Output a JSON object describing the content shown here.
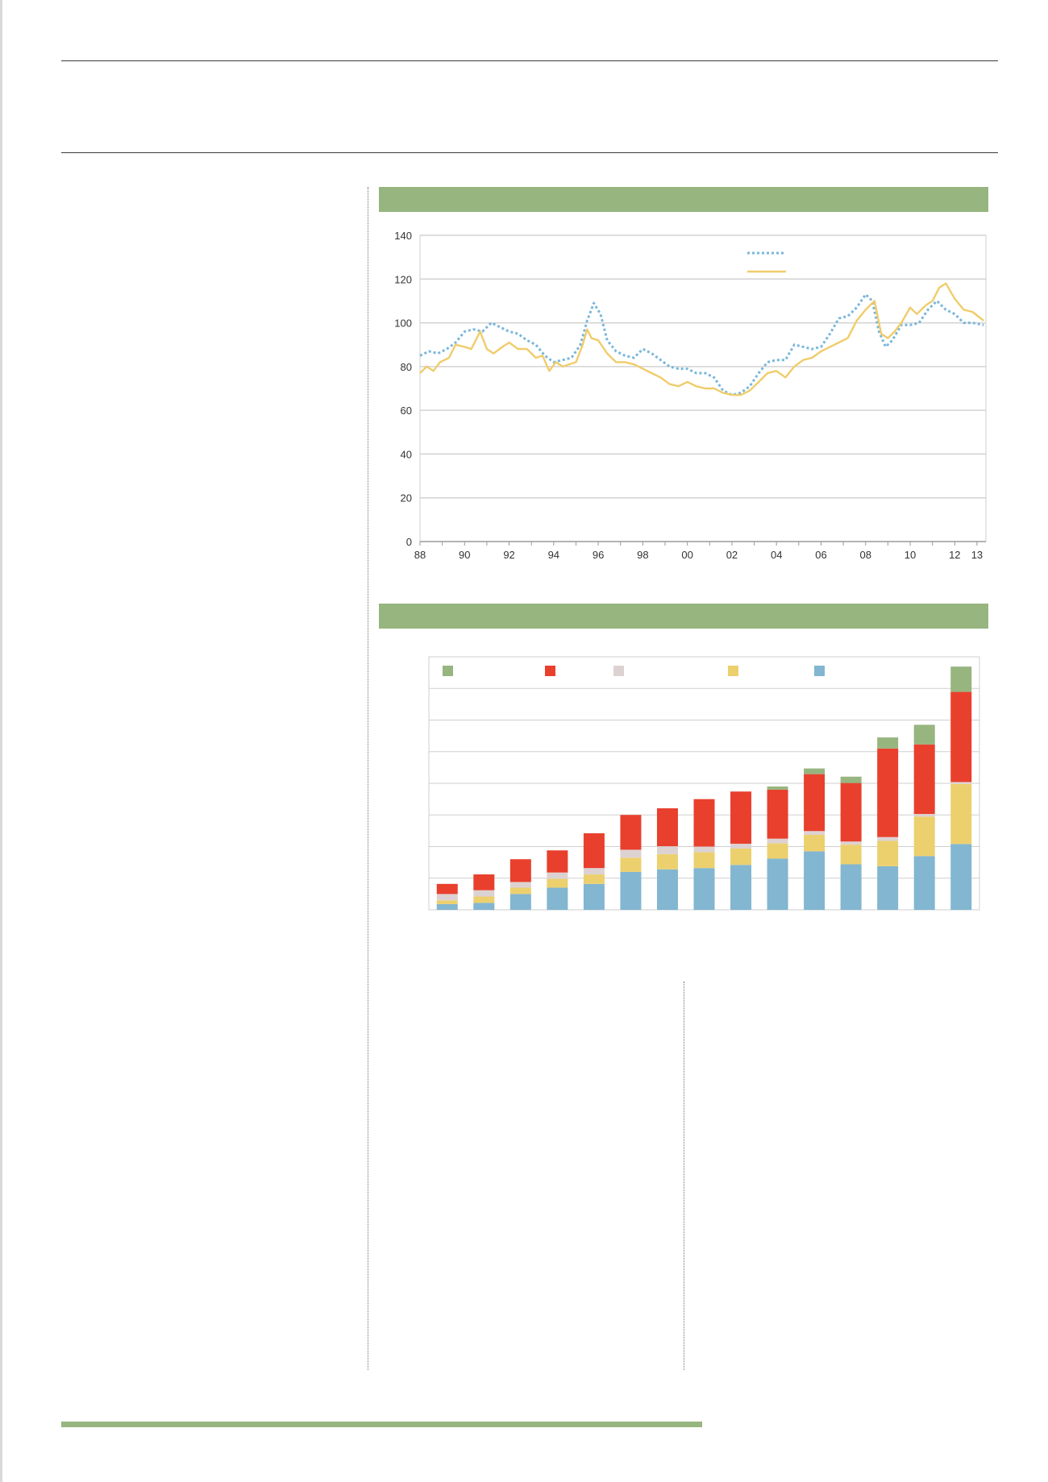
{
  "colors": {
    "band": "#97b57f",
    "blue_dotted": "#7ab7dc",
    "yellow_line": "#f0cc6a",
    "legend_green": "#97b57f",
    "legend_red": "#e8402d",
    "legend_gray": "#ddd2d2",
    "legend_yellow": "#ecd06e",
    "legend_blue": "#82b6d1"
  },
  "chart_data": [
    {
      "type": "line",
      "title": "",
      "xlabel": "",
      "ylabel": "",
      "ylim": [
        0,
        140
      ],
      "xlim": [
        1988,
        2013.4
      ],
      "grid": true,
      "legend": "top-right",
      "yticks": [
        "0",
        "20",
        "40",
        "60",
        "80",
        "100",
        "120",
        "140"
      ],
      "xticks": [
        {
          "x": 1988,
          "label": "88"
        },
        {
          "x": 1990,
          "label": "90"
        },
        {
          "x": 1992,
          "label": "92"
        },
        {
          "x": 1994,
          "label": "94"
        },
        {
          "x": 1996,
          "label": "96"
        },
        {
          "x": 1998,
          "label": "98"
        },
        {
          "x": 2000,
          "label": "00"
        },
        {
          "x": 2002,
          "label": "02"
        },
        {
          "x": 2004,
          "label": "04"
        },
        {
          "x": 2006,
          "label": "06"
        },
        {
          "x": 2008,
          "label": "08"
        },
        {
          "x": 2010,
          "label": "10"
        },
        {
          "x": 2012,
          "label": "12"
        },
        {
          "x": 2013,
          "label": "13"
        }
      ],
      "series": [
        {
          "style": "dotted",
          "color": "#7ab7dc",
          "points": [
            [
              1988,
              85
            ],
            [
              1988.4,
              87
            ],
            [
              1988.8,
              86
            ],
            [
              1989.2,
              88
            ],
            [
              1989.6,
              91
            ],
            [
              1990,
              96
            ],
            [
              1990.4,
              97
            ],
            [
              1990.8,
              96
            ],
            [
              1991.2,
              100
            ],
            [
              1991.6,
              98
            ],
            [
              1992,
              96
            ],
            [
              1992.4,
              95
            ],
            [
              1992.8,
              92
            ],
            [
              1993.2,
              90
            ],
            [
              1993.6,
              85
            ],
            [
              1994,
              82
            ],
            [
              1994.4,
              83
            ],
            [
              1994.8,
              84
            ],
            [
              1995.2,
              90
            ],
            [
              1995.5,
              101
            ],
            [
              1995.8,
              109
            ],
            [
              1996.1,
              104
            ],
            [
              1996.4,
              92
            ],
            [
              1996.8,
              87
            ],
            [
              1997.2,
              85
            ],
            [
              1997.6,
              84
            ],
            [
              1998,
              88
            ],
            [
              1998.4,
              86
            ],
            [
              1998.8,
              83
            ],
            [
              1999.2,
              80
            ],
            [
              1999.6,
              79
            ],
            [
              2000,
              79
            ],
            [
              2000.4,
              77
            ],
            [
              2000.8,
              77
            ],
            [
              2001.2,
              75
            ],
            [
              2001.6,
              69
            ],
            [
              2002,
              67
            ],
            [
              2002.4,
              68
            ],
            [
              2002.8,
              71
            ],
            [
              2003.2,
              77
            ],
            [
              2003.6,
              82
            ],
            [
              2004,
              83
            ],
            [
              2004.4,
              83
            ],
            [
              2004.8,
              90
            ],
            [
              2005.2,
              89
            ],
            [
              2005.6,
              88
            ],
            [
              2006,
              89
            ],
            [
              2006.4,
              95
            ],
            [
              2006.8,
              102
            ],
            [
              2007.2,
              103
            ],
            [
              2007.6,
              107
            ],
            [
              2008,
              113
            ],
            [
              2008.3,
              110
            ],
            [
              2008.6,
              96
            ],
            [
              2008.9,
              89
            ],
            [
              2009.2,
              92
            ],
            [
              2009.6,
              99
            ],
            [
              2010,
              99
            ],
            [
              2010.4,
              100
            ],
            [
              2010.8,
              106
            ],
            [
              2011.2,
              110
            ],
            [
              2011.6,
              106
            ],
            [
              2012,
              104
            ],
            [
              2012.4,
              100
            ],
            [
              2012.8,
              100
            ],
            [
              2013.3,
              99
            ]
          ]
        },
        {
          "style": "solid",
          "color": "#f0cc6a",
          "points": [
            [
              1988,
              77
            ],
            [
              1988.3,
              80
            ],
            [
              1988.6,
              78
            ],
            [
              1988.9,
              82
            ],
            [
              1989.3,
              84
            ],
            [
              1989.6,
              90
            ],
            [
              1990,
              89
            ],
            [
              1990.3,
              88
            ],
            [
              1990.7,
              96
            ],
            [
              1991,
              88
            ],
            [
              1991.3,
              86
            ],
            [
              1991.7,
              89
            ],
            [
              1992,
              91
            ],
            [
              1992.4,
              88
            ],
            [
              1992.8,
              88
            ],
            [
              1993.2,
              84
            ],
            [
              1993.5,
              85
            ],
            [
              1993.8,
              78
            ],
            [
              1994.1,
              82
            ],
            [
              1994.4,
              80
            ],
            [
              1994.7,
              81
            ],
            [
              1995,
              82
            ],
            [
              1995.3,
              90
            ],
            [
              1995.5,
              97
            ],
            [
              1995.7,
              93
            ],
            [
              1996,
              92
            ],
            [
              1996.4,
              86
            ],
            [
              1996.8,
              82
            ],
            [
              1997.2,
              82
            ],
            [
              1997.6,
              81
            ],
            [
              1998,
              79
            ],
            [
              1998.4,
              77
            ],
            [
              1998.8,
              75
            ],
            [
              1999.2,
              72
            ],
            [
              1999.6,
              71
            ],
            [
              2000,
              73
            ],
            [
              2000.4,
              71
            ],
            [
              2000.8,
              70
            ],
            [
              2001.2,
              70
            ],
            [
              2001.6,
              68
            ],
            [
              2002,
              67
            ],
            [
              2002.4,
              67
            ],
            [
              2002.8,
              69
            ],
            [
              2003.2,
              73
            ],
            [
              2003.6,
              77
            ],
            [
              2004,
              78
            ],
            [
              2004.4,
              75
            ],
            [
              2004.8,
              80
            ],
            [
              2005.2,
              83
            ],
            [
              2005.6,
              84
            ],
            [
              2006,
              87
            ],
            [
              2006.4,
              89
            ],
            [
              2006.8,
              91
            ],
            [
              2007.2,
              93
            ],
            [
              2007.6,
              101
            ],
            [
              2008,
              106
            ],
            [
              2008.4,
              110
            ],
            [
              2008.7,
              95
            ],
            [
              2009,
              93
            ],
            [
              2009.3,
              96
            ],
            [
              2009.6,
              100
            ],
            [
              2010,
              107
            ],
            [
              2010.3,
              104
            ],
            [
              2010.7,
              108
            ],
            [
              2011,
              110
            ],
            [
              2011.3,
              116
            ],
            [
              2011.6,
              118
            ],
            [
              2012,
              111
            ],
            [
              2012.4,
              106
            ],
            [
              2012.8,
              105
            ],
            [
              2013.3,
              101
            ]
          ]
        }
      ]
    },
    {
      "type": "bar",
      "title": "",
      "xlabel": "",
      "ylabel": "",
      "stacked": true,
      "grid": true,
      "legend": "top",
      "ylim": [
        0,
        8
      ],
      "categories": [
        "",
        "",
        "",
        "",
        "",
        "",
        "",
        "",
        "",
        "",
        "",
        "",
        "",
        "",
        ""
      ],
      "series": [
        {
          "color": "#82b6d1",
          "values": [
            0.18,
            0.22,
            0.5,
            0.7,
            0.82,
            1.2,
            1.28,
            1.32,
            1.42,
            1.62,
            1.85,
            1.44,
            1.38,
            1.7,
            2.08
          ]
        },
        {
          "color": "#ecd06e",
          "values": [
            0.12,
            0.2,
            0.2,
            0.28,
            0.3,
            0.45,
            0.48,
            0.5,
            0.52,
            0.48,
            0.52,
            0.62,
            0.8,
            1.25,
            1.9
          ]
        },
        {
          "color": "#ddd2d2",
          "values": [
            0.2,
            0.2,
            0.18,
            0.2,
            0.2,
            0.25,
            0.25,
            0.18,
            0.15,
            0.15,
            0.12,
            0.1,
            0.12,
            0.08,
            0.06
          ]
        },
        {
          "color": "#e8402d",
          "values": [
            0.32,
            0.5,
            0.72,
            0.7,
            1.1,
            1.1,
            1.2,
            1.5,
            1.65,
            1.55,
            1.8,
            1.85,
            2.8,
            2.2,
            2.85
          ]
        },
        {
          "color": "#97b57f",
          "values": [
            0,
            0,
            0,
            0,
            0,
            0,
            0,
            0,
            0,
            0.1,
            0.18,
            0.2,
            0.35,
            0.62,
            0.8
          ]
        }
      ],
      "legend_colors": [
        "#97b57f",
        "#e8402d",
        "#ddd2d2",
        "#ecd06e",
        "#82b6d1"
      ]
    }
  ]
}
